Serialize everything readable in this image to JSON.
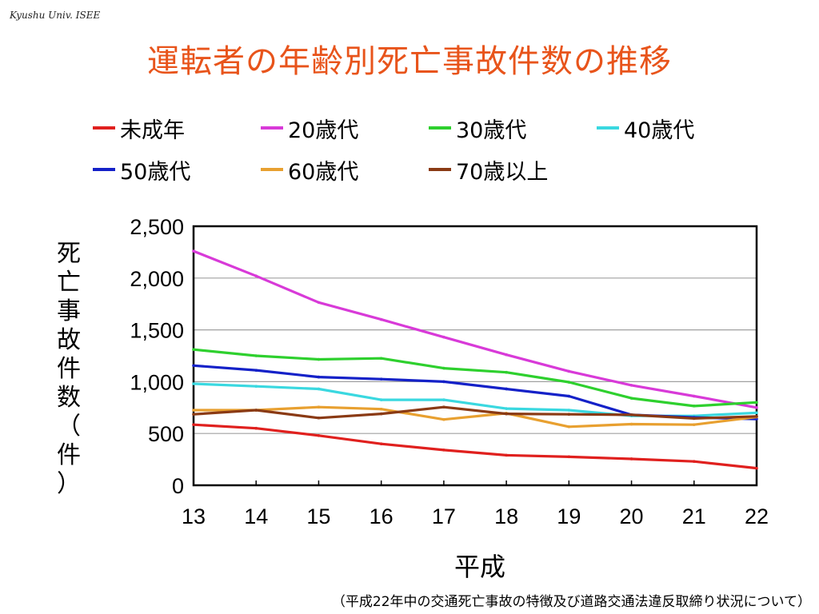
{
  "header_note": "Kyushu Univ. ISEE",
  "title": "運転者の年齢別死亡事故件数の推移",
  "footnote": "（平成22年中の交通死亡事故の特徴及び道路交通法違反取締り状況について）",
  "chart_data": {
    "type": "line",
    "title": "運転者の年齢別死亡事故件数の推移",
    "xlabel": "平成",
    "ylabel": "死亡事故件数（件）",
    "x": [
      "13",
      "14",
      "15",
      "16",
      "17",
      "18",
      "19",
      "20",
      "21",
      "22"
    ],
    "ylim": [
      0,
      2500
    ],
    "yticks": [
      "0",
      "500",
      "1,000",
      "1,500",
      "2,000",
      "2,500"
    ],
    "grid": true,
    "legend_position": "top",
    "series": [
      {
        "name": "未成年",
        "color": "#e0201e",
        "values": [
          585,
          550,
          480,
          400,
          340,
          290,
          275,
          255,
          230,
          165
        ]
      },
      {
        "name": "20歳代",
        "color": "#d83ad8",
        "values": [
          2260,
          2020,
          1765,
          1600,
          1430,
          1260,
          1100,
          965,
          860,
          750
        ]
      },
      {
        "name": "30歳代",
        "color": "#2ed02e",
        "values": [
          1310,
          1250,
          1215,
          1225,
          1130,
          1090,
          995,
          840,
          765,
          800
        ]
      },
      {
        "name": "40歳代",
        "color": "#3ad8e0",
        "values": [
          980,
          955,
          930,
          825,
          825,
          740,
          725,
          670,
          670,
          700
        ]
      },
      {
        "name": "50歳代",
        "color": "#1421c8",
        "values": [
          1155,
          1110,
          1045,
          1025,
          1000,
          930,
          860,
          680,
          655,
          640
        ]
      },
      {
        "name": "60歳代",
        "color": "#e8a030",
        "values": [
          725,
          725,
          755,
          735,
          635,
          695,
          565,
          590,
          585,
          660
        ]
      },
      {
        "name": "70歳以上",
        "color": "#8a3a14",
        "values": [
          685,
          725,
          650,
          690,
          755,
          690,
          685,
          680,
          645,
          665
        ]
      }
    ]
  }
}
